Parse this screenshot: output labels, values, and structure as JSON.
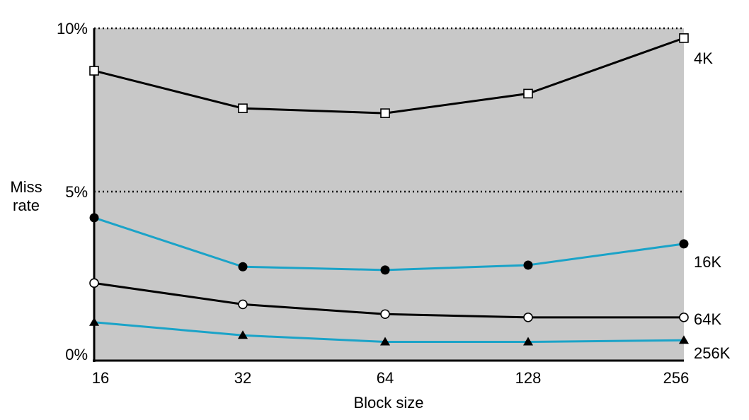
{
  "chart_data": {
    "type": "line",
    "title": "",
    "xlabel": "Block size",
    "ylabel": "Miss rate",
    "ylim": [
      0,
      10
    ],
    "grid": "dotted horizontal lines at 5% and 10%",
    "background_color": "#c8c8c8",
    "categories": [
      "16",
      "32",
      "64",
      "128",
      "256"
    ],
    "y_tick_labels": [
      {
        "value": 0,
        "label": "0%"
      },
      {
        "value": 5,
        "label": "5%"
      },
      {
        "value": 10,
        "label": "10%"
      }
    ],
    "series": [
      {
        "name": "4K",
        "color": "#000000",
        "marker": "open-square",
        "values": [
          8.7,
          7.55,
          7.4,
          8.0,
          9.7
        ]
      },
      {
        "name": "16K",
        "color": "#1aa3c8",
        "marker": "filled-circle",
        "values": [
          4.2,
          2.7,
          2.6,
          2.75,
          3.4
        ]
      },
      {
        "name": "64K",
        "color": "#000000",
        "marker": "open-circle",
        "values": [
          2.2,
          1.55,
          1.25,
          1.15,
          1.15
        ]
      },
      {
        "name": "256K",
        "color": "#1aa3c8",
        "marker": "filled-triangle",
        "values": [
          1.0,
          0.6,
          0.4,
          0.4,
          0.45
        ]
      }
    ]
  }
}
